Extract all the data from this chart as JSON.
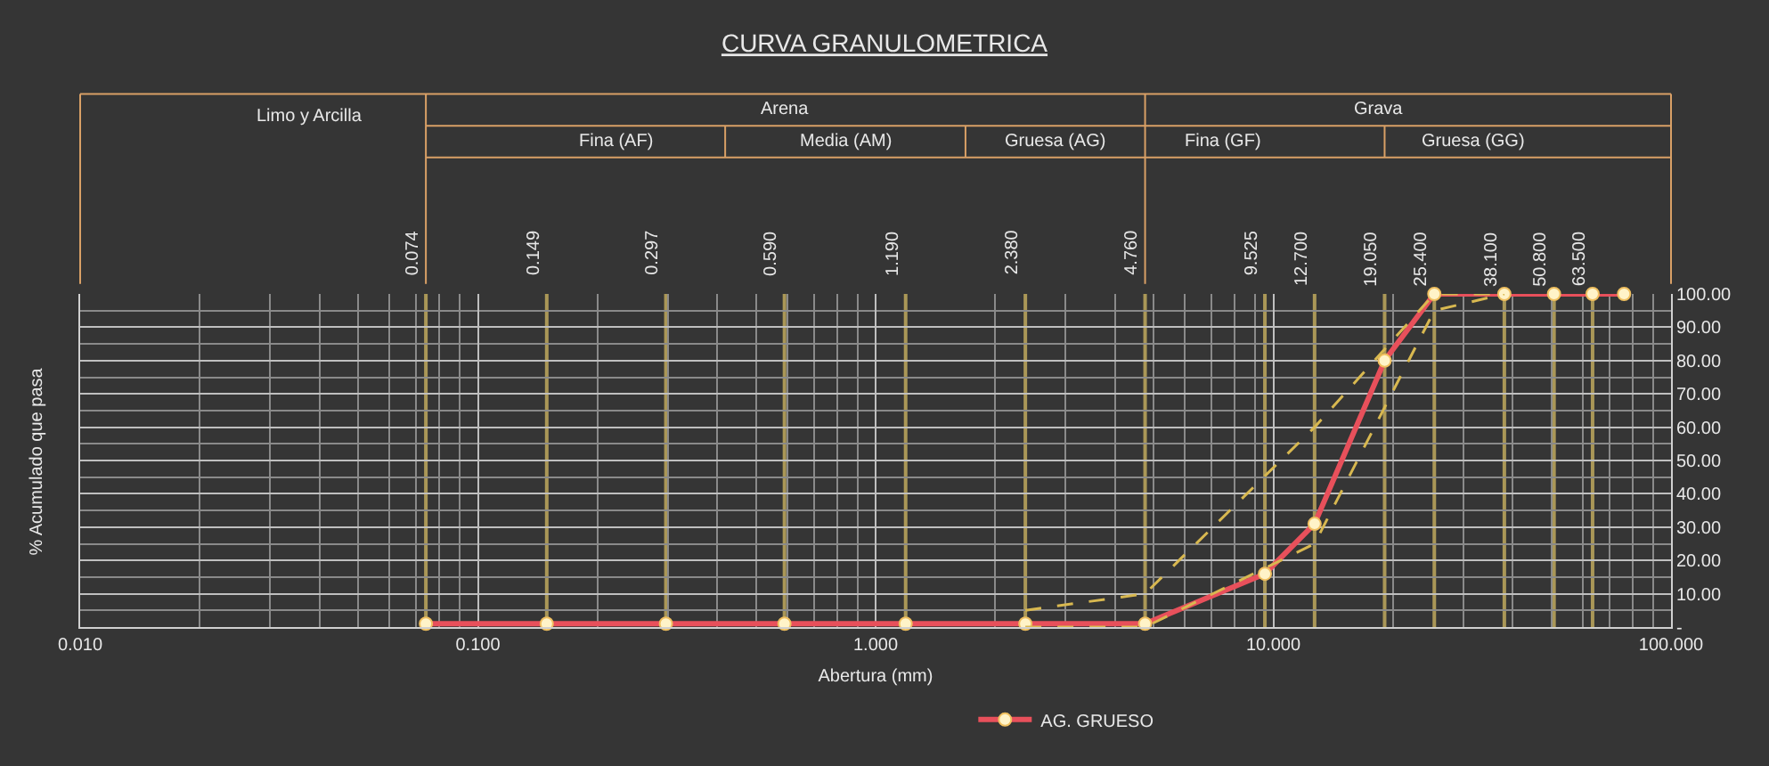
{
  "chart_data": {
    "type": "line",
    "title": "CURVA GRANULOMETRICA",
    "xlabel": "Abertura (mm)",
    "ylabel": "% Acumulado que pasa",
    "annotations": [
      "Limo y Arcilla",
      "Arena",
      "Grava",
      "Fina (AF)",
      "Media (AM)",
      "Gruesa (AG)",
      "Fina (GF)",
      "Gruesa (GG)"
    ],
    "log": "x",
    "grid": true,
    "legend": "bottom",
    "marker": "circle",
    "xlim": [
      0.01,
      100
    ],
    "xticks": [
      {
        "value": 0.01,
        "label": "0.010"
      },
      {
        "value": 0.1,
        "label": "0.100"
      },
      {
        "value": 1,
        "label": "1.000"
      },
      {
        "value": 10,
        "label": "10.000"
      },
      {
        "value": 100,
        "label": "100.000"
      }
    ],
    "ylim": [
      0,
      100
    ],
    "yticks": [
      {
        "value": 0,
        "label": "-"
      },
      {
        "value": 10,
        "label": "10.00"
      },
      {
        "value": 20,
        "label": "20.00"
      },
      {
        "value": 30,
        "label": "30.00"
      },
      {
        "value": 40,
        "label": "40.00"
      },
      {
        "value": 50,
        "label": "50.00"
      },
      {
        "value": 60,
        "label": "60.00"
      },
      {
        "value": 70,
        "label": "70.00"
      },
      {
        "value": 80,
        "label": "80.00"
      },
      {
        "value": 90,
        "label": "90.00"
      },
      {
        "value": 100,
        "label": "100.00"
      }
    ],
    "series": [
      {
        "name": "AG. GRUESO",
        "color": "#e8505b",
        "x": [
          0.074,
          0.149,
          0.297,
          0.59,
          1.19,
          2.38,
          4.76,
          9.525,
          12.7,
          19.05,
          25.4,
          38.1,
          50.8,
          63.5,
          76.2
        ],
        "values": [
          1,
          1,
          1,
          1,
          1,
          1,
          1,
          16,
          31,
          80,
          100,
          100,
          100,
          100,
          100
        ]
      },
      {
        "color": "#d8b850",
        "line_style": "dashed",
        "marker": "none",
        "x": [
          2.38,
          4.76,
          12.7,
          25.4,
          38.1
        ],
        "values": [
          5,
          10,
          60,
          100,
          100
        ]
      },
      {
        "color": "#d8b850",
        "line_style": "dashed",
        "marker": "none",
        "x": [
          2.38,
          4.76,
          12.7,
          25.4,
          38.1
        ],
        "values": [
          0,
          0,
          25,
          95,
          100
        ]
      }
    ],
    "ref_lines": [
      {
        "axis": "x",
        "value": 0.074,
        "label": "0.074",
        "color": "#c8b060"
      },
      {
        "axis": "x",
        "value": 0.149,
        "label": "0.149",
        "color": "#c8b060"
      },
      {
        "axis": "x",
        "value": 0.297,
        "label": "0.297",
        "color": "#c8b060"
      },
      {
        "axis": "x",
        "value": 0.59,
        "label": "0.590",
        "color": "#c8b060"
      },
      {
        "axis": "x",
        "value": 1.19,
        "label": "1.190",
        "color": "#c8b060"
      },
      {
        "axis": "x",
        "value": 2.38,
        "label": "2.380",
        "color": "#c8b060"
      },
      {
        "axis": "x",
        "value": 4.76,
        "label": "4.760",
        "color": "#c8b060"
      },
      {
        "axis": "x",
        "value": 9.525,
        "label": "9.525",
        "color": "#c8b060"
      },
      {
        "axis": "x",
        "value": 12.7,
        "label": "12.700",
        "color": "#c8b060"
      },
      {
        "axis": "x",
        "value": 19.05,
        "label": "19.050",
        "color": "#c8b060"
      },
      {
        "axis": "x",
        "value": 25.4,
        "label": "25.400",
        "color": "#c8b060"
      },
      {
        "axis": "x",
        "value": 38.1,
        "label": "38.100",
        "color": "#c8b060"
      },
      {
        "axis": "x",
        "value": 50.8,
        "label": "50.800",
        "color": "#c8b060"
      },
      {
        "axis": "x",
        "value": 63.5,
        "label": "63.500",
        "color": "#c8b060"
      }
    ]
  }
}
